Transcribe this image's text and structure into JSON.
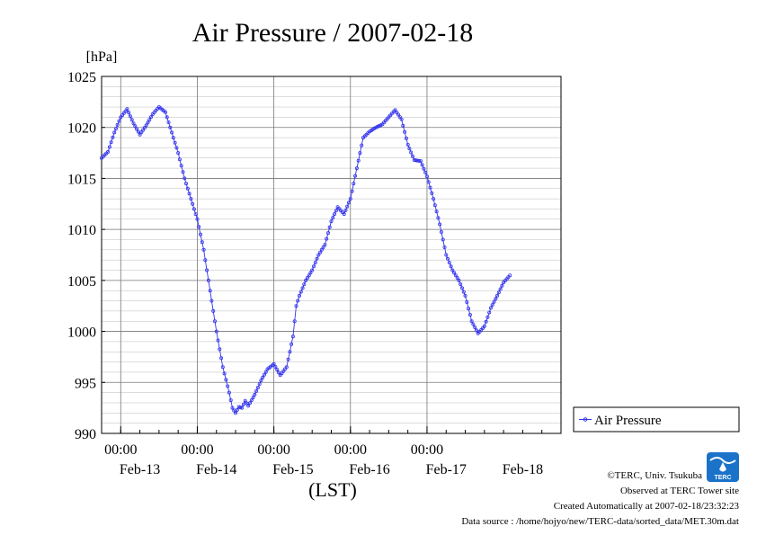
{
  "chart_data": {
    "type": "line",
    "title": "Air Pressure / 2007-02-18",
    "ylabel": "[hPa]",
    "xlabel": "(LST)",
    "ylim": [
      990,
      1025
    ],
    "yticks": [
      990,
      995,
      1000,
      1005,
      1010,
      1015,
      1020,
      1025
    ],
    "x_unit": "hours since 2007-02-12 18:00 LST",
    "xlim": [
      0,
      144
    ],
    "x_major_ticks": [
      6,
      30,
      54,
      78,
      102
    ],
    "x_time_labels": [
      "00:00",
      "00:00",
      "00:00",
      "00:00",
      "00:00"
    ],
    "x_date_labels": [
      "Feb-13",
      "Feb-14",
      "Feb-15",
      "Feb-16",
      "Feb-17",
      "Feb-18"
    ],
    "grid": true,
    "legend_position": "right",
    "series": [
      {
        "name": "Air Pressure",
        "color": "#3333ee",
        "marker": "circle",
        "points": [
          [
            0,
            1017.0
          ],
          [
            2,
            1017.6
          ],
          [
            4,
            1019.5
          ],
          [
            6,
            1021.0
          ],
          [
            8,
            1021.8
          ],
          [
            10,
            1020.4
          ],
          [
            12,
            1019.3
          ],
          [
            14,
            1020.2
          ],
          [
            16,
            1021.3
          ],
          [
            18,
            1022.0
          ],
          [
            20,
            1021.5
          ],
          [
            22,
            1019.5
          ],
          [
            24,
            1017.5
          ],
          [
            26,
            1015.0
          ],
          [
            28,
            1013.0
          ],
          [
            30,
            1011.0
          ],
          [
            32,
            1008.0
          ],
          [
            34,
            1004.0
          ],
          [
            36,
            1000.0
          ],
          [
            38,
            996.5
          ],
          [
            40,
            994.0
          ],
          [
            41,
            992.5
          ],
          [
            42,
            992.0
          ],
          [
            43,
            992.6
          ],
          [
            44,
            992.5
          ],
          [
            45,
            993.2
          ],
          [
            46,
            992.7
          ],
          [
            48,
            993.8
          ],
          [
            50,
            995.2
          ],
          [
            52,
            996.3
          ],
          [
            54,
            996.8
          ],
          [
            56,
            995.7
          ],
          [
            58,
            996.5
          ],
          [
            60,
            999.5
          ],
          [
            61,
            1002.5
          ],
          [
            62,
            1003.5
          ],
          [
            64,
            1005.0
          ],
          [
            66,
            1006.0
          ],
          [
            68,
            1007.5
          ],
          [
            70,
            1008.5
          ],
          [
            72,
            1010.8
          ],
          [
            74,
            1012.2
          ],
          [
            76,
            1011.5
          ],
          [
            78,
            1013.0
          ],
          [
            80,
            1016.0
          ],
          [
            82,
            1019.0
          ],
          [
            84,
            1019.6
          ],
          [
            86,
            1020.0
          ],
          [
            88,
            1020.3
          ],
          [
            90,
            1021.0
          ],
          [
            92,
            1021.7
          ],
          [
            94,
            1020.8
          ],
          [
            96,
            1018.3
          ],
          [
            98,
            1016.8
          ],
          [
            100,
            1016.7
          ],
          [
            102,
            1015.2
          ],
          [
            104,
            1013.0
          ],
          [
            106,
            1010.5
          ],
          [
            108,
            1007.5
          ],
          [
            110,
            1006.0
          ],
          [
            112,
            1005.0
          ],
          [
            114,
            1003.5
          ],
          [
            116,
            1001.0
          ],
          [
            118,
            999.8
          ],
          [
            120,
            1000.5
          ],
          [
            122,
            1002.3
          ],
          [
            124,
            1003.5
          ],
          [
            126,
            1004.8
          ],
          [
            128,
            1005.5
          ]
        ]
      }
    ]
  },
  "legend": {
    "label": "Air Pressure"
  },
  "footer": {
    "credit": "©TERC, Univ. Tsukuba",
    "observed": "Observed at TERC Tower site",
    "created": "Created Automatically at 2007-02-18/23:32:23",
    "source": "Data source : /home/hojyo/new/TERC-data/sorted_data/MET.30m.dat"
  },
  "logo": {
    "text": "TERC",
    "color": "#1a73c9"
  }
}
